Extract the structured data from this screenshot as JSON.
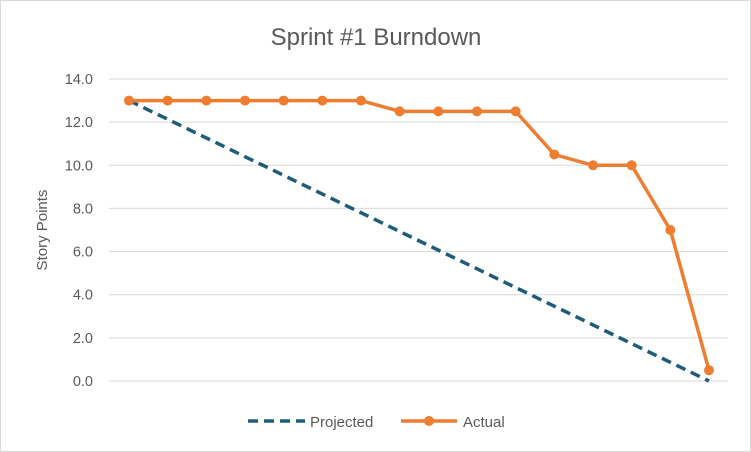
{
  "chart_data": {
    "type": "line",
    "title": "Sprint #1 Burndown",
    "xlabel": "",
    "ylabel": "Story Points",
    "ylim": [
      0,
      14
    ],
    "y_ticks": [
      "0.0",
      "2.0",
      "4.0",
      "6.0",
      "8.0",
      "10.0",
      "12.0",
      "14.0"
    ],
    "x": [
      1,
      2,
      3,
      4,
      5,
      6,
      7,
      8,
      9,
      10,
      11,
      12,
      13,
      14,
      15,
      16
    ],
    "grid": true,
    "legend_position": "bottom",
    "series": [
      {
        "name": "Projected",
        "style": "dashed",
        "color": "#1F5C7A",
        "values": [
          13,
          12.133,
          11.267,
          10.4,
          9.533,
          8.667,
          7.8,
          6.933,
          6.067,
          5.2,
          4.333,
          3.467,
          2.6,
          1.733,
          0.867,
          0
        ]
      },
      {
        "name": "Actual",
        "style": "solid-markers",
        "color": "#ED7D31",
        "values": [
          13,
          13,
          13,
          13,
          13,
          13,
          13,
          12.5,
          12.5,
          12.5,
          12.5,
          10.5,
          10,
          10,
          7,
          0.5
        ]
      }
    ]
  }
}
